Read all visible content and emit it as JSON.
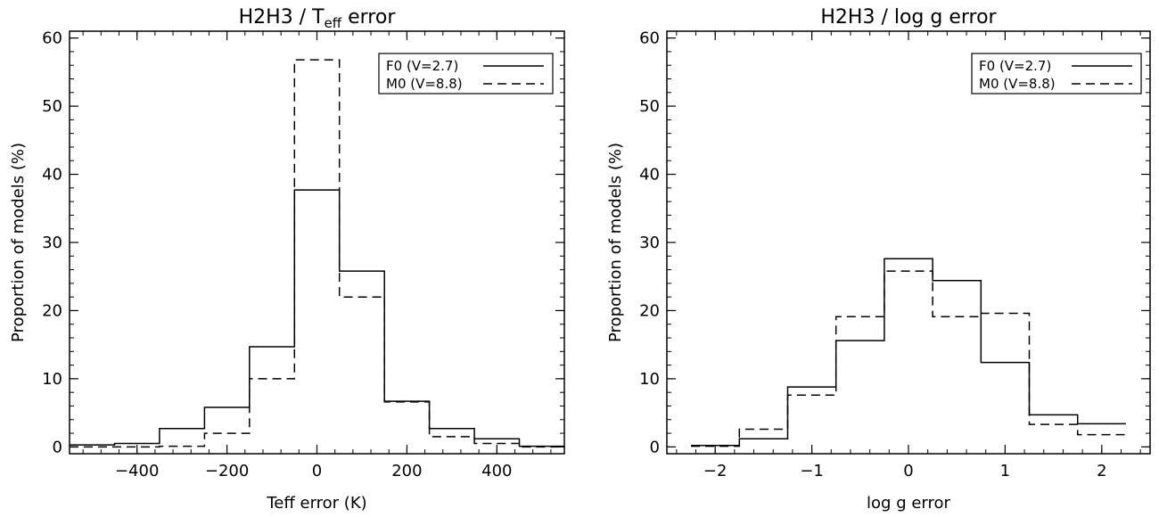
{
  "chart_data": [
    {
      "type": "step-histogram",
      "title": "H2H3 / T_eff error",
      "title_parts": {
        "main": "H2H3 / T",
        "sub": "eff",
        "tail": " error"
      },
      "xlabel": "Teff error (K)",
      "ylabel": "Proportion of models (%)",
      "xlim": [
        -550,
        550
      ],
      "ylim": [
        -1,
        61
      ],
      "xticks": [
        -400,
        -200,
        0,
        200,
        400
      ],
      "xtick_labels": [
        "−400",
        "−200",
        "0",
        "200",
        "400"
      ],
      "yticks": [
        0,
        10,
        20,
        30,
        40,
        50,
        60
      ],
      "ytick_labels": [
        "0",
        "10",
        "20",
        "30",
        "40",
        "50",
        "60"
      ],
      "legend_position": "top-right",
      "bin_edges": [
        -550,
        -450,
        -350,
        -250,
        -150,
        -50,
        50,
        150,
        250,
        350,
        450,
        550
      ],
      "series": [
        {
          "name": "F0 (V=2.7)",
          "style": "solid",
          "values": [
            0.3,
            0.5,
            2.7,
            5.8,
            14.7,
            37.7,
            25.8,
            6.7,
            2.7,
            1.2,
            0.1
          ]
        },
        {
          "name": "M0 (V=8.8)",
          "style": "dashed",
          "values": [
            0.0,
            0.0,
            0.1,
            2.0,
            10.0,
            56.8,
            22.0,
            6.6,
            1.5,
            0.5,
            0.0
          ]
        }
      ]
    },
    {
      "type": "step-histogram",
      "title": "H2H3 / log g error",
      "xlabel": "log g error",
      "ylabel": "Proportion of models (%)",
      "xlim": [
        -2.5,
        2.5
      ],
      "ylim": [
        -1,
        61
      ],
      "xticks": [
        -2,
        -1,
        0,
        1,
        2
      ],
      "xtick_labels": [
        "−2",
        "−1",
        "0",
        "1",
        "2"
      ],
      "yticks": [
        0,
        10,
        20,
        30,
        40,
        50,
        60
      ],
      "ytick_labels": [
        "0",
        "10",
        "20",
        "30",
        "40",
        "50",
        "60"
      ],
      "legend_position": "top-right",
      "bin_edges": [
        -2.25,
        -1.75,
        -1.25,
        -0.75,
        -0.25,
        0.25,
        0.75,
        1.25,
        1.75,
        2.25
      ],
      "series": [
        {
          "name": "F0 (V=2.7)",
          "style": "solid",
          "values": [
            0.2,
            1.2,
            8.8,
            15.6,
            27.6,
            24.4,
            12.4,
            4.7,
            3.4
          ]
        },
        {
          "name": "M0 (V=8.8)",
          "style": "dashed",
          "values": [
            0.1,
            2.6,
            7.6,
            19.1,
            25.8,
            19.1,
            19.6,
            3.3,
            1.8
          ]
        }
      ]
    }
  ]
}
